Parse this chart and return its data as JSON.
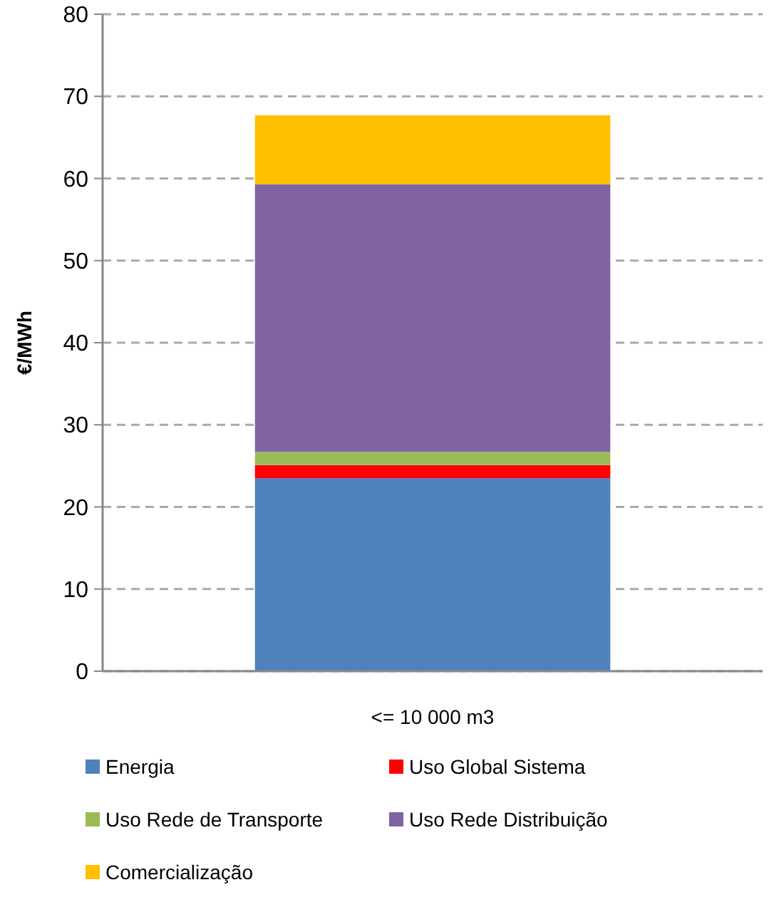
{
  "chart_data": {
    "type": "bar",
    "stacked": true,
    "ylabel": "€/MWh",
    "categories": [
      "<= 10 000 m3"
    ],
    "series": [
      {
        "name": "Energia",
        "color": "#4f81bd",
        "values": [
          23.5
        ]
      },
      {
        "name": "Uso Global Sistema",
        "color": "#ff0000",
        "values": [
          1.6
        ]
      },
      {
        "name": "Uso Rede de Transporte",
        "color": "#9bbb59",
        "values": [
          1.6
        ]
      },
      {
        "name": "Uso Rede Distribuição",
        "color": "#8064a2",
        "values": [
          32.6
        ]
      },
      {
        "name": "Comercialização",
        "color": "#ffc000",
        "values": [
          8.4
        ]
      }
    ],
    "ylim": [
      0,
      80
    ],
    "yticks": [
      0,
      10,
      20,
      30,
      40,
      50,
      60,
      70,
      80
    ],
    "grid": "y",
    "legend": "bottom"
  }
}
